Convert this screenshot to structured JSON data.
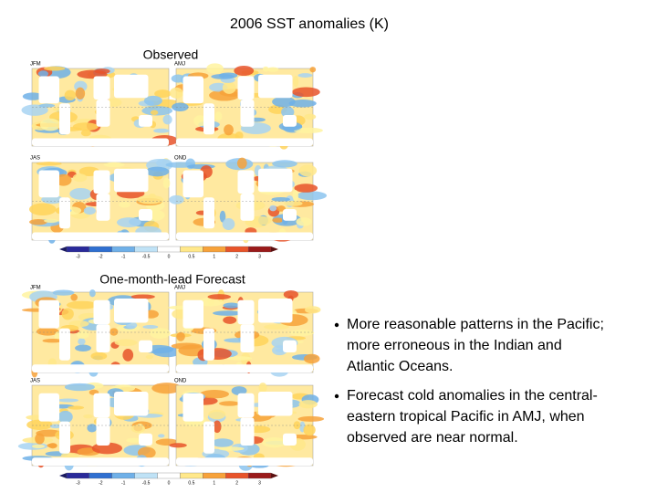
{
  "header": {
    "title": "2006 SST anomalies (K)"
  },
  "observed": {
    "label": "Observed",
    "panels": [
      "JFM",
      "AMJ",
      "JAS",
      "OND"
    ],
    "colorbar": [
      "-3",
      "-2",
      "-1",
      "-0.5",
      "0",
      "0.5",
      "1",
      "2",
      "3"
    ]
  },
  "forecast": {
    "label": "One-month-lead Forecast",
    "panels": [
      "JFM",
      "AMJ",
      "JAS",
      "OND"
    ],
    "colorbar": [
      "-3",
      "-2",
      "-1",
      "-0.5",
      "0",
      "0.5",
      "1",
      "2",
      "3"
    ]
  },
  "bullets": [
    [
      "More reasonable patterns in the Pacific;",
      "more erroneous in the Indian and",
      "Atlantic Oceans."
    ],
    [
      "Forecast cold anomalies in the central-",
      "eastern tropical Pacific in AMJ, when",
      "observed are near normal."
    ]
  ]
}
